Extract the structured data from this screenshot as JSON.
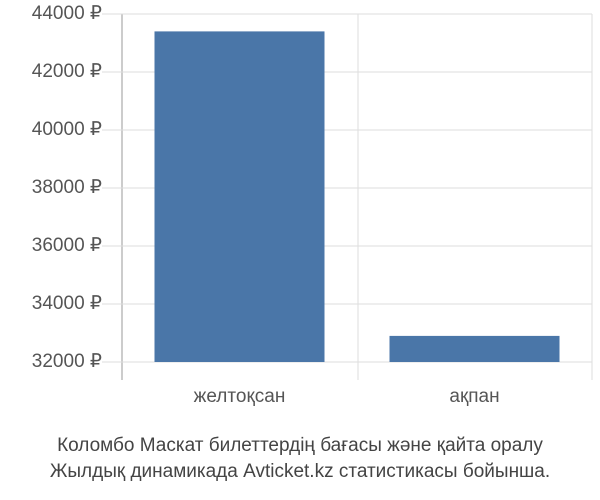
{
  "chart_data": {
    "type": "bar",
    "categories": [
      "желтоқсан",
      "ақпан"
    ],
    "values": [
      43400,
      32900
    ],
    "color": "#4a76a8",
    "ylim": [
      32000,
      44000
    ],
    "yticks": [
      {
        "value": 32000,
        "label": "32000 ₽"
      },
      {
        "value": 34000,
        "label": "34000 ₽"
      },
      {
        "value": 36000,
        "label": "36000 ₽"
      },
      {
        "value": 38000,
        "label": "38000 ₽"
      },
      {
        "value": 40000,
        "label": "40000 ₽"
      },
      {
        "value": 42000,
        "label": "42000 ₽"
      },
      {
        "value": 44000,
        "label": "44000 ₽"
      }
    ],
    "grid": true,
    "caption": [
      "Коломбо Маскат билеттердің бағасы және қайта оралу",
      "Жылдық динамикада Avticket.kz статистикасы бойынша."
    ]
  }
}
